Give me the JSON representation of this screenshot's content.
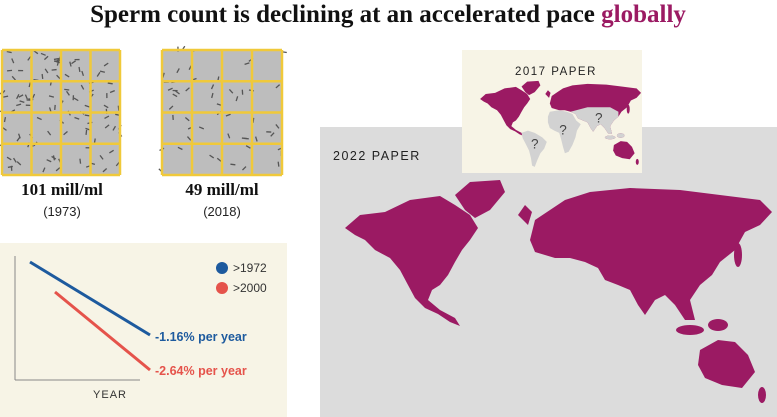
{
  "header": {
    "title": "Sperm count is declining at an accelerated pace",
    "highlight": "globally"
  },
  "samples": [
    {
      "count": "101 mill/ml",
      "year": "(1973)"
    },
    {
      "count": "49 mill/ml",
      "year": "(2018)"
    }
  ],
  "trend": {
    "legend": [
      ">1972",
      ">2000"
    ],
    "labels": [
      "-1.16% per year",
      "-2.64% per year"
    ],
    "axis_label": "YEAR"
  },
  "maps": {
    "label_2022": "2022 PAPER",
    "label_2017": "2017 PAPER",
    "unknown_mark": "?"
  }
}
